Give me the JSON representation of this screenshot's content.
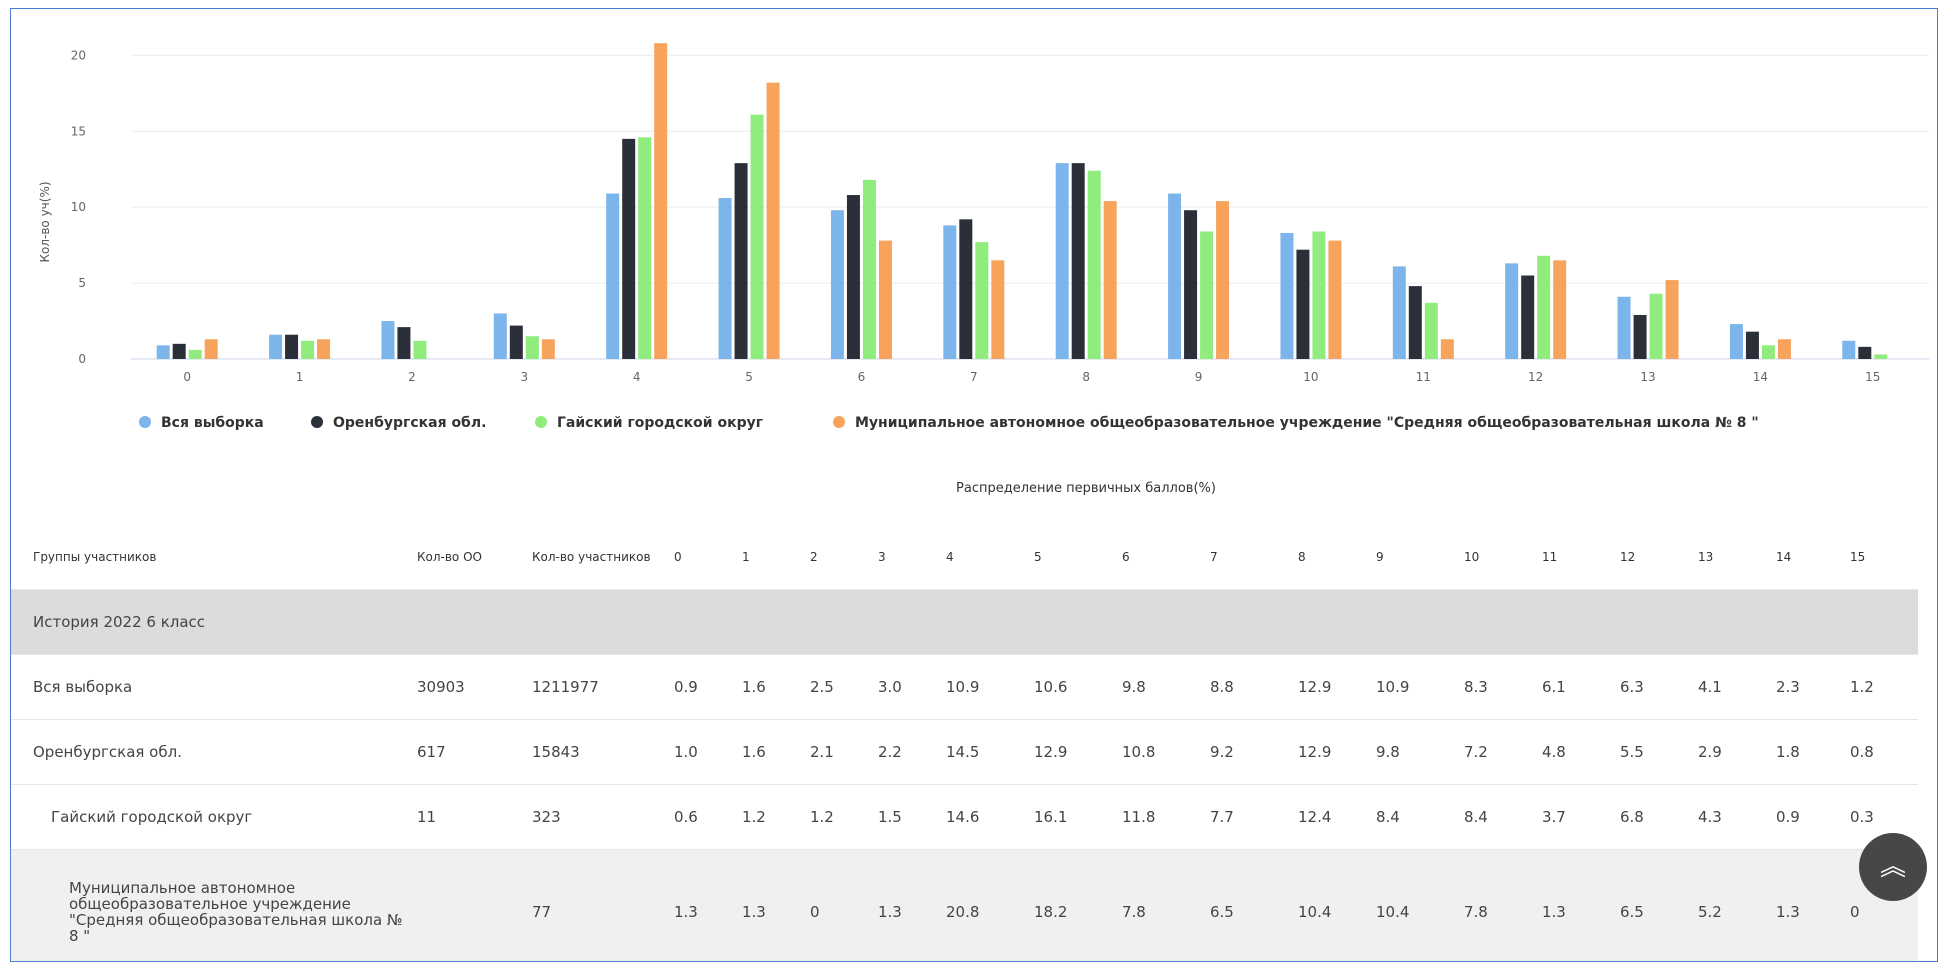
{
  "chart_data": {
    "type": "bar",
    "title": "",
    "xlabel": "",
    "ylabel": "Кол-во уч(%)",
    "categories": [
      "0",
      "1",
      "2",
      "3",
      "4",
      "5",
      "6",
      "7",
      "8",
      "9",
      "10",
      "11",
      "12",
      "13",
      "14",
      "15"
    ],
    "yticks": [
      "0",
      "5",
      "10",
      "15",
      "20"
    ],
    "ylim": [
      0,
      22
    ],
    "grid": true,
    "legend_position": "bottom-left",
    "series": [
      {
        "name": "Вся выборка",
        "color": "#7cb5ec",
        "values": [
          0.9,
          1.6,
          2.5,
          3.0,
          10.9,
          10.6,
          9.8,
          8.8,
          12.9,
          10.9,
          8.3,
          6.1,
          6.3,
          4.1,
          2.3,
          1.2
        ]
      },
      {
        "name": "Оренбургская обл.",
        "color": "#2b2f3a",
        "values": [
          1.0,
          1.6,
          2.1,
          2.2,
          14.5,
          12.9,
          10.8,
          9.2,
          12.9,
          9.8,
          7.2,
          4.8,
          5.5,
          2.9,
          1.8,
          0.8
        ]
      },
      {
        "name": "Гайский городской округ",
        "color": "#90ed7d",
        "values": [
          0.6,
          1.2,
          1.2,
          1.5,
          14.6,
          16.1,
          11.8,
          7.7,
          12.4,
          8.4,
          8.4,
          3.7,
          6.8,
          4.3,
          0.9,
          0.3
        ]
      },
      {
        "name": "Муниципальное автономное общеобразовательное учреждение \"Средняя общеобразовательная школа № 8 \"",
        "color": "#f7a35c",
        "values": [
          1.3,
          1.3,
          0,
          1.3,
          20.8,
          18.2,
          7.8,
          6.5,
          10.4,
          10.4,
          7.8,
          1.3,
          6.5,
          5.2,
          1.3,
          0
        ]
      }
    ]
  },
  "table": {
    "caption": "Распределение первичных баллов(%)",
    "headers": {
      "group": "Группы участников",
      "oo": "Кол-во ОО",
      "participants": "Кол-во участников",
      "scores": [
        "0",
        "1",
        "2",
        "3",
        "4",
        "5",
        "6",
        "7",
        "8",
        "9",
        "10",
        "11",
        "12",
        "13",
        "14",
        "15"
      ]
    },
    "group_title": "История 2022 6 класс",
    "rows": [
      {
        "name": "Вся выборка",
        "oo": "30903",
        "participants": "1211977",
        "values": [
          "0.9",
          "1.6",
          "2.5",
          "3.0",
          "10.9",
          "10.6",
          "9.8",
          "8.8",
          "12.9",
          "10.9",
          "8.3",
          "6.1",
          "6.3",
          "4.1",
          "2.3",
          "1.2"
        ]
      },
      {
        "name": "Оренбургская обл.",
        "oo": "617",
        "participants": "15843",
        "values": [
          "1.0",
          "1.6",
          "2.1",
          "2.2",
          "14.5",
          "12.9",
          "10.8",
          "9.2",
          "12.9",
          "9.8",
          "7.2",
          "4.8",
          "5.5",
          "2.9",
          "1.8",
          "0.8"
        ]
      },
      {
        "name": "Гайский городской округ",
        "oo": "11",
        "participants": "323",
        "values": [
          "0.6",
          "1.2",
          "1.2",
          "1.5",
          "14.6",
          "16.1",
          "11.8",
          "7.7",
          "12.4",
          "8.4",
          "8.4",
          "3.7",
          "6.8",
          "4.3",
          "0.9",
          "0.3"
        ]
      },
      {
        "name": "Муниципальное автономное общеобразовательное учреждение \"Средняя общеобразовательная школа № 8 \"",
        "oo": "",
        "participants": "77",
        "values": [
          "1.3",
          "1.3",
          "0",
          "1.3",
          "20.8",
          "18.2",
          "7.8",
          "6.5",
          "10.4",
          "10.4",
          "7.8",
          "1.3",
          "6.5",
          "5.2",
          "1.3",
          "0"
        ]
      }
    ]
  },
  "scroll_top": {
    "icon": "double-chevron-up-icon",
    "glyph": "︽"
  }
}
